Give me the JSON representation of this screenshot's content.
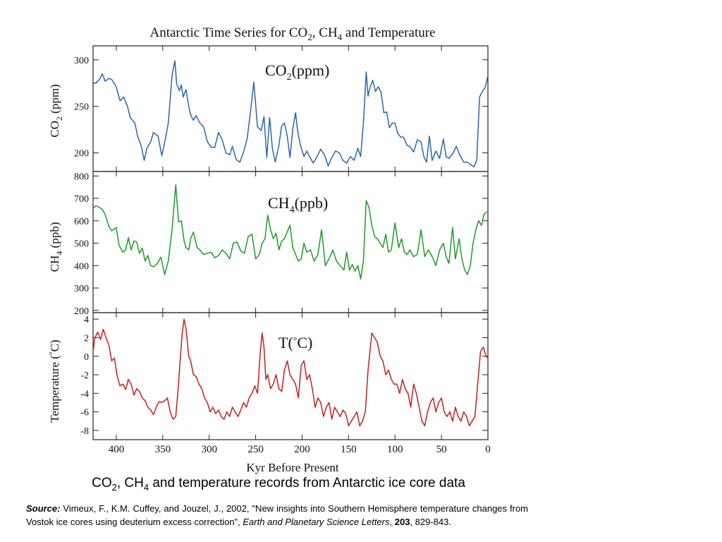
{
  "figure": {
    "title_parts": [
      "Antarctic Time Series for CO",
      "2",
      ", CH",
      "4",
      " and Temperature"
    ],
    "xlabel": "Kyr Before Present"
  },
  "chart_data": [
    {
      "type": "line",
      "panel_label_parts": [
        "CO",
        "2",
        "(ppm)"
      ],
      "ylabel_parts": [
        "CO",
        "2",
        " (ppm)"
      ],
      "color": "#2a66a8",
      "xlim": [
        425,
        0
      ],
      "ylim": [
        180,
        315
      ],
      "yticks": [
        200,
        250,
        300
      ],
      "x": [
        425,
        422,
        418,
        415,
        412,
        408,
        405,
        400,
        396,
        392,
        388,
        385,
        380,
        377,
        373,
        370,
        367,
        363,
        360,
        355,
        351,
        348,
        344,
        340,
        337,
        335,
        332,
        330,
        328,
        325,
        322,
        320,
        317,
        314,
        310,
        306,
        302,
        298,
        294,
        290,
        286,
        282,
        278,
        275,
        271,
        267,
        263,
        259,
        255,
        252,
        248,
        244,
        241,
        238,
        235,
        232,
        229,
        225,
        222,
        219,
        216,
        213,
        210,
        207,
        205,
        202,
        198,
        195,
        192,
        188,
        184,
        180,
        176,
        172,
        168,
        164,
        160,
        156,
        152,
        148,
        144,
        140,
        137,
        134,
        131,
        129,
        127,
        124,
        121,
        118,
        115,
        112,
        109,
        106,
        103,
        100,
        97,
        94,
        91,
        87,
        84,
        80,
        76,
        72,
        69,
        66,
        63,
        60,
        56,
        52,
        48,
        45,
        42,
        38,
        34,
        30,
        26,
        22,
        18,
        15,
        12,
        9,
        6,
        3,
        0
      ],
      "y": [
        275,
        275,
        279,
        285,
        277,
        280,
        279,
        271,
        256,
        260,
        250,
        238,
        232,
        218,
        207,
        192,
        205,
        212,
        222,
        218,
        197,
        211,
        232,
        283,
        299,
        274,
        267,
        273,
        260,
        268,
        250,
        241,
        235,
        240,
        232,
        228,
        212,
        206,
        206,
        222,
        214,
        200,
        198,
        207,
        193,
        190,
        201,
        216,
        249,
        276,
        228,
        224,
        239,
        195,
        238,
        205,
        190,
        208,
        229,
        232,
        218,
        195,
        226,
        243,
        225,
        209,
        196,
        202,
        196,
        189,
        196,
        204,
        198,
        186,
        195,
        202,
        200,
        192,
        189,
        196,
        192,
        205,
        196,
        232,
        287,
        261,
        270,
        278,
        266,
        271,
        265,
        243,
        244,
        227,
        232,
        232,
        221,
        217,
        217,
        208,
        207,
        201,
        214,
        212,
        196,
        190,
        218,
        192,
        202,
        194,
        215,
        196,
        194,
        199,
        207,
        197,
        190,
        190,
        187,
        185,
        192,
        260,
        266,
        270,
        283
      ]
    },
    {
      "type": "line",
      "panel_label_parts": [
        "CH",
        "4",
        "(ppb)"
      ],
      "ylabel_parts": [
        "CH",
        "4",
        " (ppb)"
      ],
      "color": "#1e9a2a",
      "xlim": [
        425,
        0
      ],
      "ylim": [
        190,
        820
      ],
      "yticks": [
        200,
        300,
        400,
        500,
        600,
        700,
        800
      ],
      "x": [
        425,
        422,
        418,
        415,
        412,
        408,
        405,
        400,
        397,
        393,
        390,
        387,
        384,
        381,
        378,
        375,
        372,
        369,
        366,
        363,
        360,
        356,
        352,
        348,
        344,
        340,
        336,
        333,
        330,
        327,
        325,
        322,
        320,
        317,
        313,
        310,
        306,
        302,
        298,
        294,
        290,
        286,
        282,
        278,
        274,
        270,
        266,
        262,
        258,
        254,
        250,
        246,
        243,
        240,
        237,
        234,
        231,
        228,
        225,
        222,
        219,
        216,
        213,
        210,
        207,
        204,
        201,
        198,
        195,
        191,
        187,
        183,
        179,
        175,
        171,
        167,
        163,
        159,
        155,
        152,
        149,
        146,
        143,
        140,
        137,
        134,
        131,
        128,
        125,
        122,
        119,
        116,
        113,
        110,
        107,
        104,
        100,
        96,
        93,
        90,
        87,
        84,
        80,
        76,
        72,
        68,
        64,
        60,
        56,
        52,
        48,
        45,
        42,
        38,
        35,
        31,
        28,
        25,
        22,
        19,
        16,
        13,
        10,
        7,
        4,
        1
      ],
      "y": [
        655,
        667,
        660,
        650,
        628,
        575,
        555,
        570,
        490,
        460,
        470,
        525,
        470,
        510,
        505,
        455,
        478,
        420,
        445,
        400,
        395,
        408,
        438,
        360,
        420,
        560,
        760,
        595,
        600,
        510,
        480,
        470,
        520,
        550,
        480,
        470,
        450,
        455,
        460,
        435,
        445,
        470,
        455,
        430,
        500,
        505,
        465,
        455,
        530,
        540,
        430,
        450,
        500,
        520,
        625,
        560,
        520,
        545,
        470,
        510,
        520,
        550,
        580,
        480,
        450,
        420,
        430,
        500,
        460,
        470,
        420,
        450,
        560,
        400,
        430,
        470,
        420,
        400,
        380,
        460,
        380,
        405,
        375,
        400,
        340,
        420,
        690,
        660,
        580,
        530,
        520,
        500,
        480,
        540,
        460,
        470,
        590,
        480,
        520,
        460,
        450,
        470,
        440,
        450,
        560,
        440,
        470,
        440,
        400,
        470,
        500,
        440,
        410,
        570,
        430,
        520,
        430,
        380,
        360,
        400,
        500,
        560,
        600,
        580,
        630,
        640
      ]
    },
    {
      "type": "line",
      "panel_label_parts": [
        "T(",
        "°",
        "C)"
      ],
      "ylabel_parts": [
        "Temperature (",
        "°",
        "C)"
      ],
      "color": "#c2201e",
      "xlim": [
        425,
        0
      ],
      "ylim": [
        -9,
        4.7
      ],
      "yticks": [
        -8,
        -6,
        -4,
        -2,
        0,
        2,
        4
      ],
      "x": [
        425,
        423,
        420,
        417,
        414,
        411,
        408,
        405,
        402,
        399,
        396,
        393,
        390,
        387,
        384,
        381,
        378,
        375,
        372,
        369,
        366,
        363,
        360,
        357,
        354,
        351,
        348,
        345,
        342,
        339,
        336,
        333,
        331,
        329,
        327,
        325,
        322,
        320,
        317,
        314,
        311,
        308,
        305,
        302,
        299,
        296,
        293,
        290,
        287,
        284,
        281,
        278,
        275,
        272,
        269,
        266,
        263,
        260,
        257,
        254,
        251,
        248,
        245,
        243,
        241,
        239,
        237,
        234,
        231,
        228,
        225,
        222,
        219,
        216,
        213,
        210,
        207,
        204,
        201,
        198,
        195,
        192,
        189,
        186,
        183,
        180,
        177,
        174,
        171,
        168,
        165,
        162,
        159,
        156,
        153,
        150,
        147,
        144,
        141,
        138,
        135,
        132,
        129,
        127,
        125,
        122,
        119,
        116,
        113,
        110,
        107,
        104,
        101,
        98,
        95,
        92,
        89,
        86,
        83,
        80,
        77,
        74,
        71,
        68,
        65,
        62,
        59,
        56,
        53,
        50,
        47,
        44,
        41,
        38,
        35,
        32,
        29,
        26,
        23,
        20,
        17,
        14,
        11,
        8,
        5,
        2,
        0
      ],
      "y": [
        0.5,
        2.0,
        2.6,
        1.8,
        2.9,
        2.0,
        1.2,
        -0.5,
        -0.2,
        -2.2,
        -3.2,
        -3.0,
        -3.6,
        -2.5,
        -3.0,
        -4.2,
        -3.5,
        -3.8,
        -4.5,
        -4.8,
        -5.5,
        -5.8,
        -6.3,
        -5.5,
        -4.9,
        -5.0,
        -4.8,
        -4.5,
        -6.0,
        -6.8,
        -6.5,
        -3.0,
        0.0,
        2.5,
        4.0,
        3.0,
        0.0,
        -0.5,
        -2.0,
        -2.2,
        -3.0,
        -3.5,
        -4.5,
        -5.0,
        -6.0,
        -5.5,
        -6.2,
        -5.8,
        -6.5,
        -6.8,
        -6.0,
        -6.5,
        -5.5,
        -6.0,
        -6.5,
        -5.8,
        -5.0,
        -5.5,
        -4.5,
        -4.0,
        -3.2,
        -4.0,
        0.5,
        2.5,
        1.0,
        -2.5,
        -2.0,
        -3.5,
        -3.0,
        -2.0,
        -3.5,
        -3.8,
        -1.5,
        -0.5,
        -2.0,
        -2.5,
        -3.0,
        -4.5,
        -1.0,
        -0.5,
        -2.5,
        -2.0,
        -3.5,
        -5.5,
        -4.5,
        -5.0,
        -6.5,
        -5.5,
        -5.0,
        -6.8,
        -5.5,
        -6.0,
        -6.5,
        -5.8,
        -6.2,
        -7.5,
        -7.0,
        -6.5,
        -6.0,
        -7.5,
        -7.0,
        -6.0,
        -1.5,
        0.5,
        2.5,
        2.0,
        1.5,
        0.0,
        -0.5,
        -2.0,
        -1.5,
        -2.5,
        -3.0,
        -3.0,
        -4.0,
        -2.5,
        -3.5,
        -4.0,
        -5.5,
        -3.0,
        -4.0,
        -5.5,
        -7.0,
        -7.5,
        -6.0,
        -5.0,
        -4.5,
        -6.0,
        -5.0,
        -4.5,
        -6.0,
        -6.5,
        -6.0,
        -7.0,
        -5.5,
        -6.5,
        -7.0,
        -6.0,
        -6.5,
        -7.5,
        -7.0,
        -6.5,
        -3.0,
        0.5,
        1.0,
        0.0,
        -0.2
      ]
    }
  ],
  "caption": {
    "title_parts": [
      "CO",
      "2",
      ", CH",
      "4",
      " and temperature records from Antarctic ice core data"
    ],
    "source_label": "Source:",
    "source_text": " Vimeux, F., K.M. Cuffey, and Jouzel, J., 2002, \"New insights into Southern Hemisphere temperature changes from Vostok ice cores using deuterium excess correction\", ",
    "journal": "Earth and Planetary Science Letters",
    "sep": ", ",
    "volume": "203",
    "pages": ", 829-843."
  }
}
